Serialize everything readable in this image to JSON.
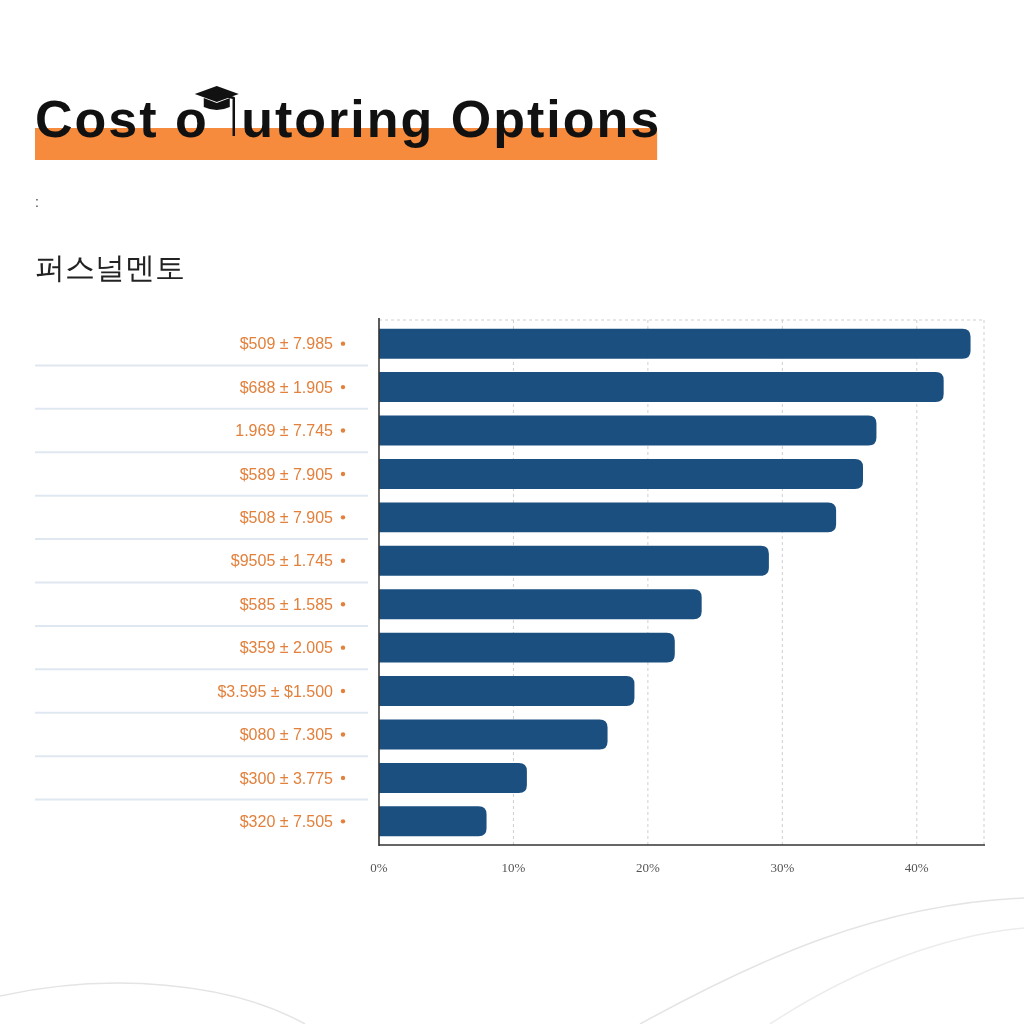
{
  "chart_data": {
    "type": "bar",
    "orientation": "horizontal",
    "title": "Cost o utoring Options",
    "subtitle": "퍼스널멘토",
    "annotations": [
      ":"
    ],
    "categories": [
      "$509 ± 7.985",
      "$688 ± 1.905",
      "1.969 ± 7.745",
      "$589 ± 7.905",
      "$508 ± 7.905",
      "$9505 ± 1.745",
      "$585 ± 1.585",
      "$359 ± 2.005",
      "$3.595 ± $1.500",
      "$080 ± 7.305",
      "$300 ± 3.775",
      "$320 ± 7.505"
    ],
    "values": [
      44,
      42,
      37,
      36,
      34,
      29,
      24,
      22,
      19,
      17,
      11,
      8
    ],
    "color": "#1b4f80",
    "xlim": [
      0,
      45
    ],
    "xticks": [
      {
        "value": 0,
        "label": "0%"
      },
      {
        "value": 10,
        "label": "10%"
      },
      {
        "value": 20,
        "label": "20%"
      },
      {
        "value": 30,
        "label": "30%"
      },
      {
        "value": 40,
        "label": "40%"
      }
    ],
    "grid": "x"
  }
}
